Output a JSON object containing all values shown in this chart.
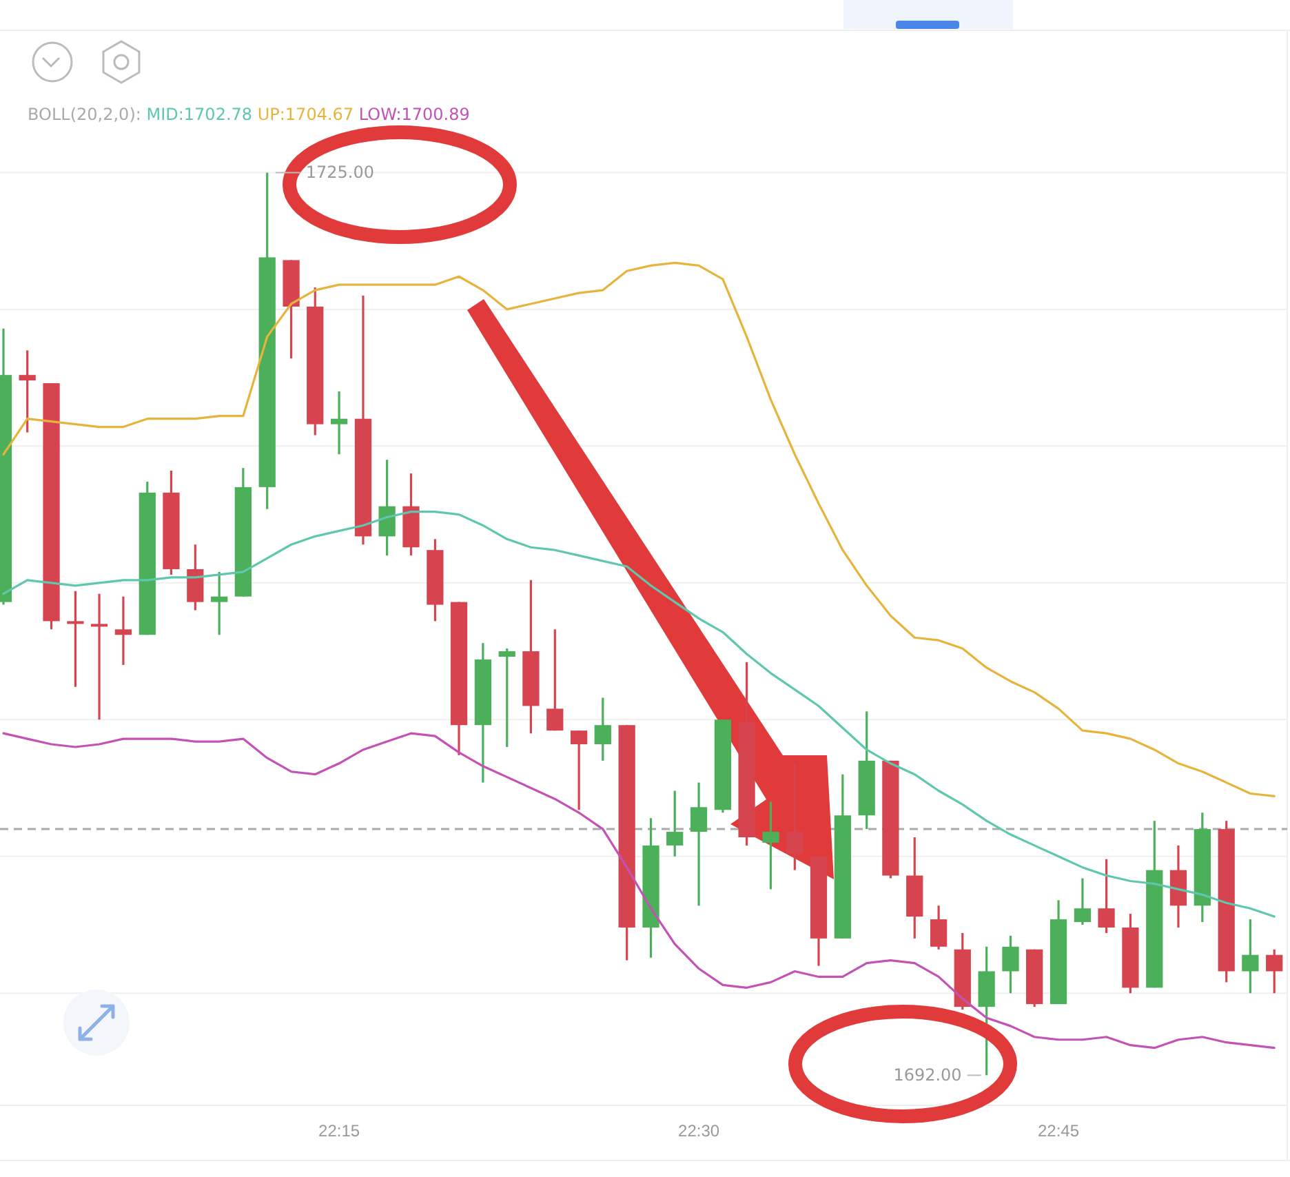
{
  "chart_data": {
    "type": "candlestick",
    "x": [
      22.0167,
      22.0333,
      22.05,
      22.0667,
      22.0833,
      22.1,
      22.1167,
      22.1333,
      22.15,
      22.1667,
      22.1833,
      22.2,
      22.2167,
      22.2333,
      22.25,
      22.2667,
      22.2833,
      22.3,
      22.3167,
      22.3333,
      22.35,
      22.3667,
      22.3833,
      22.4,
      22.4167,
      22.4333,
      22.45,
      22.4667,
      22.4833,
      22.5,
      22.5167,
      22.5333,
      22.55,
      22.5667,
      22.5833,
      22.6,
      22.6167,
      22.6333,
      22.65,
      22.6667,
      22.6833,
      22.7,
      22.7167,
      22.7333,
      22.75,
      22.7667,
      22.7833,
      22.8,
      22.8167,
      22.8333,
      22.85,
      22.8667,
      22.8833,
      22.9
    ],
    "ohlc": [
      [
        1709.3,
        1719.3,
        1709.2,
        1717.6
      ],
      [
        1717.6,
        1718.5,
        1715.5,
        1717.4
      ],
      [
        1717.3,
        1717.3,
        1708.3,
        1708.6
      ],
      [
        1708.6,
        1709.7,
        1706.2,
        1708.5
      ],
      [
        1708.5,
        1709.6,
        1705.0,
        1708.4
      ],
      [
        1708.3,
        1709.5,
        1707.0,
        1708.1
      ],
      [
        1708.1,
        1713.7,
        1708.1,
        1713.3
      ],
      [
        1713.3,
        1714.1,
        1710.3,
        1710.5
      ],
      [
        1710.5,
        1711.4,
        1709.0,
        1709.3
      ],
      [
        1709.3,
        1710.4,
        1708.1,
        1709.5
      ],
      [
        1709.5,
        1714.2,
        1709.5,
        1713.5
      ],
      [
        1713.5,
        1725.0,
        1712.7,
        1721.9
      ],
      [
        1721.8,
        1721.8,
        1718.2,
        1720.1
      ],
      [
        1720.1,
        1720.8,
        1715.4,
        1715.8
      ],
      [
        1715.8,
        1717.0,
        1714.7,
        1716.0
      ],
      [
        1716.0,
        1720.5,
        1711.4,
        1711.7
      ],
      [
        1711.7,
        1714.5,
        1711.0,
        1712.8
      ],
      [
        1712.8,
        1714.0,
        1711.0,
        1711.3
      ],
      [
        1711.2,
        1711.6,
        1708.6,
        1709.2
      ],
      [
        1709.3,
        1709.3,
        1703.7,
        1704.8
      ],
      [
        1704.8,
        1707.8,
        1702.7,
        1707.2
      ],
      [
        1707.3,
        1707.6,
        1704.0,
        1707.5
      ],
      [
        1707.5,
        1710.1,
        1704.5,
        1705.5
      ],
      [
        1705.4,
        1708.3,
        1704.6,
        1704.6
      ],
      [
        1704.6,
        1704.6,
        1701.7,
        1704.1
      ],
      [
        1704.1,
        1705.8,
        1703.5,
        1704.8
      ],
      [
        1704.8,
        1704.8,
        1696.2,
        1697.4
      ],
      [
        1697.4,
        1701.4,
        1696.3,
        1700.4
      ],
      [
        1700.4,
        1702.4,
        1700.0,
        1700.9
      ],
      [
        1700.9,
        1702.7,
        1698.2,
        1701.8
      ],
      [
        1701.7,
        1705.0,
        1701.6,
        1705.0
      ],
      [
        1704.9,
        1707.1,
        1700.4,
        1700.7
      ],
      [
        1700.5,
        1702.0,
        1698.8,
        1700.9
      ],
      [
        1700.9,
        1703.4,
        1699.5,
        1700.1
      ],
      [
        1700.0,
        1700.0,
        1696.0,
        1697.0
      ],
      [
        1697.0,
        1703.0,
        1697.0,
        1701.5
      ],
      [
        1701.5,
        1705.3,
        1701.0,
        1703.5
      ],
      [
        1703.5,
        1703.5,
        1699.2,
        1699.3
      ],
      [
        1699.3,
        1700.7,
        1697.0,
        1697.8
      ],
      [
        1697.7,
        1698.2,
        1696.6,
        1696.7
      ],
      [
        1696.6,
        1697.2,
        1694.4,
        1694.5
      ],
      [
        1694.5,
        1696.7,
        1692.0,
        1695.8
      ],
      [
        1695.8,
        1697.1,
        1695.0,
        1696.7
      ],
      [
        1696.6,
        1696.6,
        1694.5,
        1694.6
      ],
      [
        1694.6,
        1698.4,
        1694.6,
        1697.7
      ],
      [
        1697.6,
        1699.2,
        1697.5,
        1698.1
      ],
      [
        1698.1,
        1699.9,
        1697.2,
        1697.4
      ],
      [
        1697.4,
        1697.9,
        1695.0,
        1695.2
      ],
      [
        1695.2,
        1701.3,
        1695.2,
        1699.5
      ],
      [
        1699.5,
        1700.4,
        1697.4,
        1698.2
      ],
      [
        1698.2,
        1701.6,
        1697.6,
        1701.0
      ],
      [
        1701.0,
        1701.3,
        1695.4,
        1695.8
      ],
      [
        1695.8,
        1697.7,
        1695.0,
        1696.4
      ],
      [
        1696.4,
        1696.6,
        1695.0,
        1695.8
      ]
    ],
    "colors": [
      "#4caf5a",
      "#d6454f",
      "#d6454f",
      "#d6454f",
      "#d6454f",
      "#d6454f",
      "#4caf5a",
      "#d6454f",
      "#d6454f",
      "#4caf5a",
      "#4caf5a",
      "#4caf5a",
      "#d6454f",
      "#d6454f",
      "#4caf5a",
      "#d6454f",
      "#4caf5a",
      "#d6454f",
      "#d6454f",
      "#d6454f",
      "#4caf5a",
      "#4caf5a",
      "#d6454f",
      "#d6454f",
      "#d6454f",
      "#4caf5a",
      "#d6454f",
      "#4caf5a",
      "#4caf5a",
      "#4caf5a",
      "#4caf5a",
      "#d6454f",
      "#4caf5a",
      "#d6454f",
      "#d6454f",
      "#4caf5a",
      "#4caf5a",
      "#d6454f",
      "#d6454f",
      "#d6454f",
      "#d6454f",
      "#4caf5a",
      "#4caf5a",
      "#d6454f",
      "#4caf5a",
      "#4caf5a",
      "#d6454f",
      "#d6454f",
      "#4caf5a",
      "#d6454f",
      "#4caf5a",
      "#d6454f",
      "#4caf5a",
      "#d6454f"
    ],
    "series": [
      {
        "name": "MID:1702.78",
        "type": "line",
        "color": "#5ec7ae",
        "values": [
          1709.6,
          1710.1,
          1710.0,
          1709.9,
          1710.0,
          1710.1,
          1710.1,
          1710.2,
          1710.2,
          1710.3,
          1710.4,
          1710.9,
          1711.4,
          1711.7,
          1711.9,
          1712.1,
          1712.4,
          1712.6,
          1712.6,
          1712.5,
          1712.1,
          1711.6,
          1711.3,
          1711.2,
          1711.0,
          1710.8,
          1710.6,
          1709.9,
          1709.3,
          1708.7,
          1708.2,
          1707.4,
          1706.7,
          1706.1,
          1705.5,
          1704.7,
          1703.9,
          1703.4,
          1703.0,
          1702.4,
          1701.9,
          1701.3,
          1700.8,
          1700.4,
          1700.0,
          1699.6,
          1699.3,
          1699.1,
          1699.0,
          1698.8,
          1698.6,
          1698.3,
          1698.1,
          1697.8
        ]
      },
      {
        "name": "UP:1704.67",
        "type": "line",
        "color": "#e6b43c",
        "values": [
          1714.7,
          1716.0,
          1715.9,
          1715.8,
          1715.7,
          1715.7,
          1716.0,
          1716.0,
          1716.0,
          1716.1,
          1716.1,
          1719.0,
          1720.2,
          1720.7,
          1720.9,
          1720.9,
          1720.9,
          1720.9,
          1720.9,
          1721.2,
          1720.7,
          1720.0,
          1720.2,
          1720.4,
          1720.6,
          1720.7,
          1721.4,
          1721.6,
          1721.7,
          1721.6,
          1721.1,
          1719.0,
          1716.7,
          1714.7,
          1712.9,
          1711.2,
          1709.9,
          1708.8,
          1708.0,
          1707.9,
          1707.6,
          1706.9,
          1706.4,
          1706.0,
          1705.4,
          1704.6,
          1704.5,
          1704.3,
          1703.9,
          1703.4,
          1703.1,
          1702.7,
          1702.3,
          1702.2
        ]
      },
      {
        "name": "LOW:1700.89",
        "type": "line",
        "color": "#c452b5",
        "values": [
          1704.5,
          1704.3,
          1704.1,
          1704.0,
          1704.1,
          1704.3,
          1704.3,
          1704.3,
          1704.2,
          1704.2,
          1704.3,
          1703.6,
          1703.1,
          1703.0,
          1703.4,
          1703.9,
          1704.2,
          1704.5,
          1704.4,
          1703.8,
          1703.3,
          1702.9,
          1702.5,
          1702.1,
          1701.6,
          1701.0,
          1699.6,
          1698.1,
          1696.8,
          1695.9,
          1695.3,
          1695.2,
          1695.4,
          1695.8,
          1695.6,
          1695.6,
          1696.1,
          1696.2,
          1696.1,
          1695.6,
          1694.8,
          1694.1,
          1693.8,
          1693.4,
          1693.3,
          1693.3,
          1693.4,
          1693.1,
          1693.0,
          1693.3,
          1693.4,
          1693.2,
          1693.1,
          1693.0
        ]
      }
    ],
    "legend_title": "BOLL(20,2,0):",
    "legend": "top left",
    "annotations": [
      {
        "text": "1725.00",
        "x": 22.2,
        "y": 1725.0
      },
      {
        "text": "1692.00",
        "x": 22.7,
        "y": 1692.0
      }
    ],
    "ref_lines": [
      {
        "axis": "y",
        "value": 1701.0,
        "color": "#aaaaaa",
        "line_style": "dashed"
      }
    ],
    "xlim": [
      22.0143,
      22.909
    ],
    "xticks": [
      {
        "value": 22.25,
        "label": "22:15"
      },
      {
        "value": 22.5,
        "label": "22:30"
      },
      {
        "value": 22.75,
        "label": "22:45"
      }
    ],
    "ylim": [
      1690.9,
      1730.2
    ],
    "yticks": [
      {
        "value": 1695,
        "label": null
      },
      {
        "value": 1700,
        "label": null
      },
      {
        "value": 1705,
        "label": null
      },
      {
        "value": 1710,
        "label": null
      },
      {
        "value": 1715,
        "label": null
      },
      {
        "value": 1720,
        "label": null
      },
      {
        "value": 1725,
        "label": null
      }
    ],
    "grid": "y",
    "tick_labels": "x"
  }
}
